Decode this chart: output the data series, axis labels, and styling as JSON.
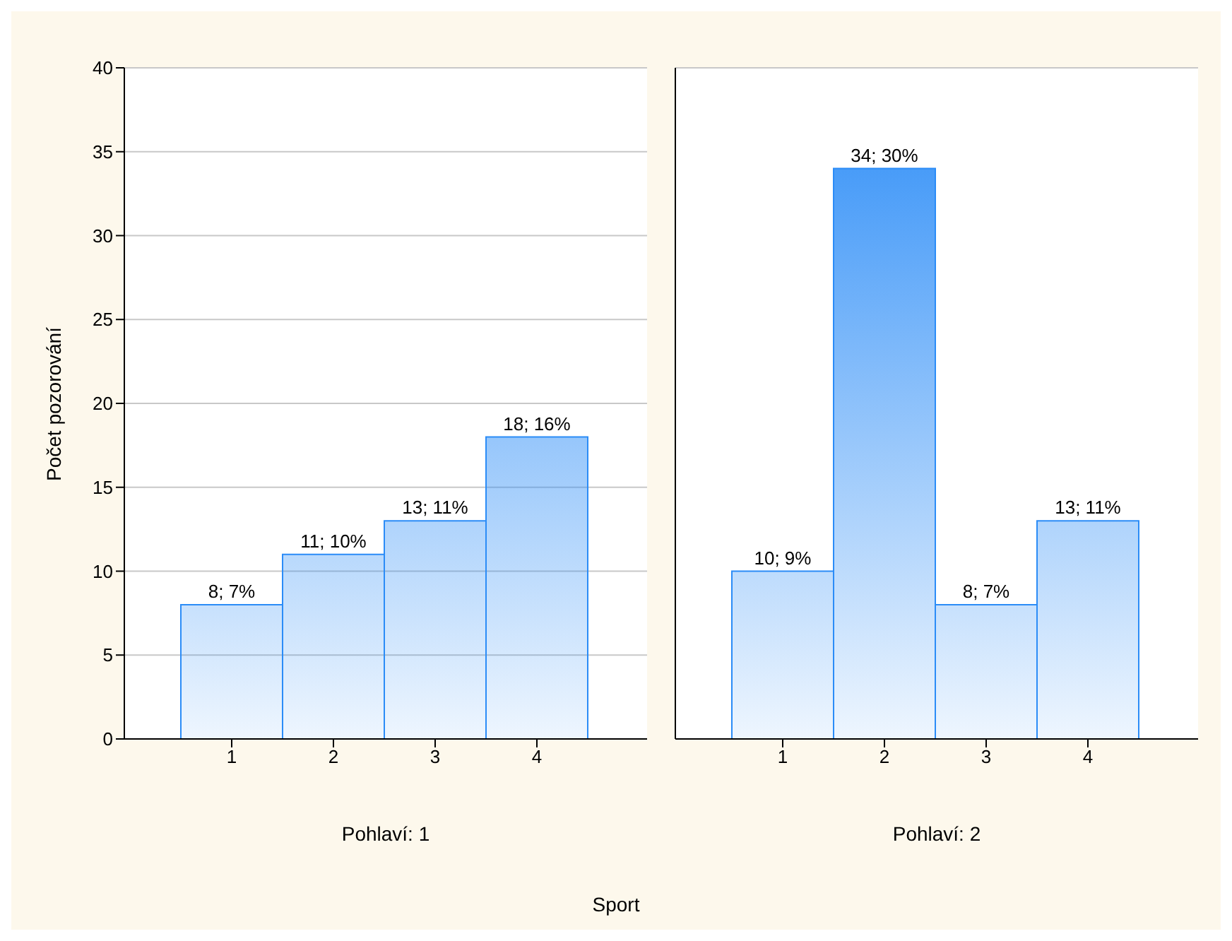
{
  "chart_data": [
    {
      "type": "bar",
      "xlabel": "Pohlaví: 1",
      "ylabel": "Počet pozorování",
      "annotations": [
        "Sport"
      ],
      "categories": [
        "1",
        "2",
        "3",
        "4"
      ],
      "values": [
        8,
        11,
        13,
        18
      ],
      "value_labels": [
        "8; 7%",
        "11; 10%",
        "13; 11%",
        "18; 16%"
      ],
      "color": "#2b8cf7",
      "ylim": [
        0,
        40
      ],
      "yticks": [
        0,
        5,
        10,
        15,
        20,
        25,
        30,
        35,
        40
      ],
      "grid": "y"
    },
    {
      "type": "bar",
      "xlabel": "Pohlaví: 2",
      "categories": [
        "1",
        "2",
        "3",
        "4"
      ],
      "values": [
        10,
        34,
        8,
        13
      ],
      "value_labels": [
        "10; 9%",
        "34; 30%",
        "8; 7%",
        "13; 11%"
      ],
      "color": "#2b8cf7",
      "ylim": [
        0,
        40
      ],
      "yticks": [
        0,
        5,
        10,
        15,
        20,
        25,
        30,
        35,
        40
      ],
      "grid": "y",
      "tick_labels": "x"
    }
  ]
}
